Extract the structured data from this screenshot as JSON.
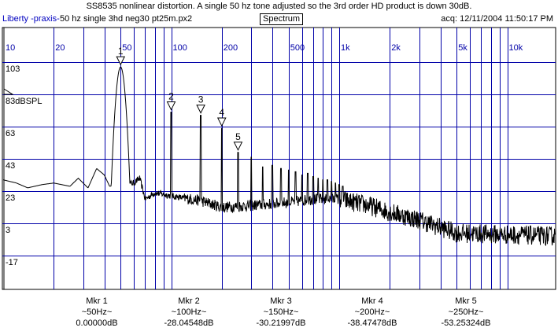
{
  "header": {
    "title": "SS8535 nonlinear distortion. A single 50 hz tone adjusted so the 3rd order HD product is down 30dB.",
    "organization": "Liberty -praxis-",
    "filename": "50 hz single 3hd neg30 pt25m.px2",
    "view_button": "Spectrum",
    "acquired": "acq: 12/11/2004 11:50:17 PM"
  },
  "colors": {
    "grid": "#0000a8",
    "trace": "#000000",
    "org_text": "#0000c0"
  },
  "chart_data": {
    "type": "line",
    "title": "Spectrum",
    "xscale": "log",
    "xlim": [
      10,
      20000
    ],
    "ylim": [
      -37,
      105
    ],
    "x_ticks": [
      {
        "v": 10,
        "label": "10"
      },
      {
        "v": 20,
        "label": "20"
      },
      {
        "v": 50,
        "label": "50"
      },
      {
        "v": 100,
        "label": "100"
      },
      {
        "v": 200,
        "label": "200"
      },
      {
        "v": 500,
        "label": "500"
      },
      {
        "v": 1000,
        "label": "1k"
      },
      {
        "v": 2000,
        "label": "2k"
      },
      {
        "v": 5000,
        "label": "5k"
      },
      {
        "v": 10000,
        "label": "10k"
      }
    ],
    "y_ticks": [
      {
        "v": 103,
        "label": "103"
      },
      {
        "v": 83,
        "label": "83dBSPL"
      },
      {
        "v": 63,
        "label": "63"
      },
      {
        "v": 43,
        "label": "43"
      },
      {
        "v": 23,
        "label": "23"
      },
      {
        "v": 3,
        "label": "3"
      },
      {
        "v": -17,
        "label": "-17"
      }
    ],
    "reference_level": 83,
    "fundamental": {
      "freq": 50,
      "level": 100
    },
    "harmonic_levels": [
      72,
      70,
      62,
      47,
      44,
      38,
      39,
      37,
      36,
      35,
      33,
      34,
      32,
      31,
      30,
      30,
      29,
      28,
      27,
      26
    ],
    "noise_floor": [
      [
        10,
        30
      ],
      [
        12,
        28
      ],
      [
        14,
        25
      ],
      [
        17,
        27
      ],
      [
        20,
        28
      ],
      [
        25,
        26
      ],
      [
        28,
        31
      ],
      [
        32,
        25
      ],
      [
        36,
        37
      ],
      [
        40,
        33
      ],
      [
        43,
        26
      ],
      [
        60,
        28
      ],
      [
        65,
        31
      ],
      [
        70,
        18
      ],
      [
        80,
        22
      ],
      [
        100,
        20
      ],
      [
        150,
        17
      ],
      [
        200,
        13
      ],
      [
        300,
        14
      ],
      [
        500,
        16
      ],
      [
        700,
        18
      ],
      [
        1000,
        18
      ],
      [
        1500,
        14
      ],
      [
        2000,
        10
      ],
      [
        3000,
        5
      ],
      [
        5000,
        -3
      ],
      [
        10000,
        -4
      ],
      [
        20000,
        -5
      ]
    ],
    "markers": [
      {
        "n": "1",
        "freq": 50,
        "level": 100,
        "name": "Mkr 1",
        "freq_label": "~50Hz~",
        "value": "0.00000dB"
      },
      {
        "n": "2",
        "freq": 100,
        "level": 72,
        "name": "Mkr 2",
        "freq_label": "~100Hz~",
        "value": "-28.04548dB"
      },
      {
        "n": "3",
        "freq": 150,
        "level": 70,
        "name": "Mkr 3",
        "freq_label": "~150Hz~",
        "value": "-30.21997dB"
      },
      {
        "n": "4",
        "freq": 200,
        "level": 62,
        "name": "Mkr 4",
        "freq_label": "~200Hz~",
        "value": "-38.47478dB"
      },
      {
        "n": "5",
        "freq": 250,
        "level": 47,
        "name": "Mkr 5",
        "freq_label": "~250Hz~",
        "value": "-53.25324dB"
      }
    ]
  }
}
